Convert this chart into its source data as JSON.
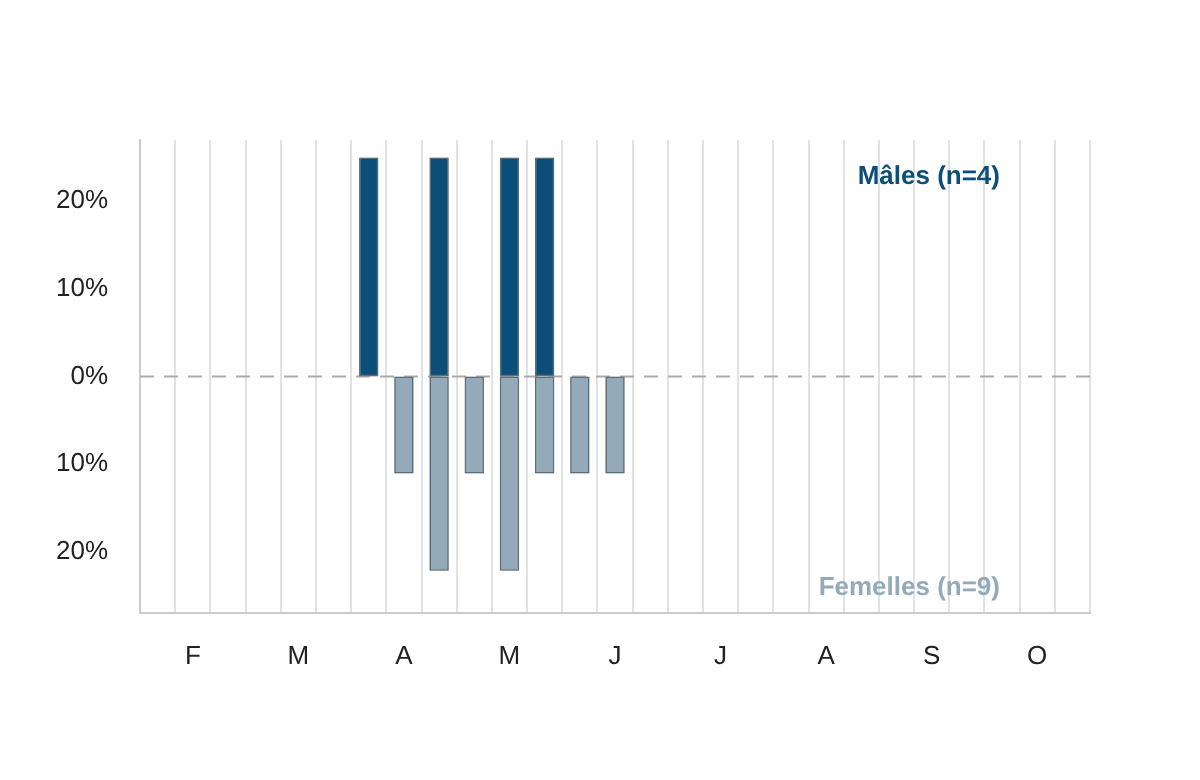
{
  "chart_data": {
    "type": "bar",
    "stacked": true,
    "categories": [
      null,
      "F",
      null,
      null,
      "M",
      null,
      null,
      "A",
      null,
      null,
      "M",
      null,
      null,
      "J",
      null,
      null,
      "J",
      null,
      null,
      "A",
      null,
      null,
      "S",
      null,
      null,
      "O",
      null
    ],
    "series": [
      {
        "name": "Mâles (n=4)",
        "color": "#0b4f78",
        "values": [
          0,
          0,
          0,
          0,
          0,
          0,
          25,
          0,
          25,
          0,
          25,
          25,
          0,
          0,
          0,
          0,
          0,
          0,
          0,
          0,
          0,
          0,
          0,
          0,
          0,
          0,
          0
        ]
      },
      {
        "name": "Femelles (n=9)",
        "color": "#94aab8",
        "values": [
          0,
          0,
          0,
          0,
          0,
          0,
          0,
          -11.1,
          -22.2,
          -11.1,
          -22.2,
          -11.1,
          -11.1,
          -11.1,
          0,
          0,
          0,
          0,
          0,
          0,
          0,
          0,
          0,
          0,
          0,
          0,
          0
        ]
      }
    ],
    "ylim": [
      -27,
      27
    ],
    "yticks": [
      {
        "value": -20,
        "label": "20%"
      },
      {
        "value": -10,
        "label": "10%"
      },
      {
        "value": 0,
        "label": "0%"
      },
      {
        "value": 10,
        "label": "10%"
      },
      {
        "value": 20,
        "label": "20%"
      }
    ],
    "grid": "x",
    "ref_lines": [
      {
        "axis": "y",
        "value": 0,
        "color": "#aaaaaa",
        "line_style": "dashed"
      }
    ]
  }
}
